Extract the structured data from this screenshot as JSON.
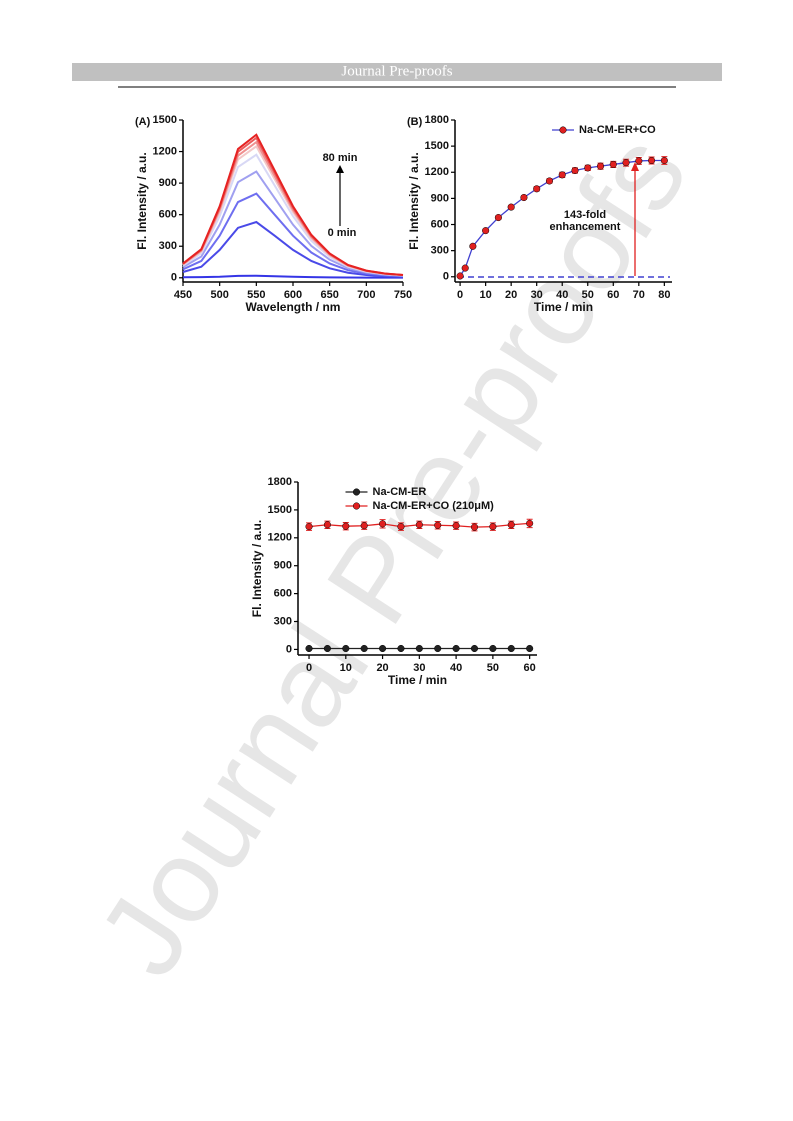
{
  "header": {
    "title": "Journal Pre-proofs"
  },
  "watermark": "Journal Pre-proofs",
  "chart_data": [
    {
      "type": "line",
      "panel_label": "(A)",
      "x_label": "Wavelength / nm",
      "y_label": "Fl. Intensity / a.u.",
      "x": [
        450,
        475,
        500,
        525,
        550,
        575,
        600,
        625,
        650,
        675,
        700,
        725,
        750
      ],
      "series": [
        {
          "color": "#3535e6",
          "values": [
            5,
            6,
            10,
            18,
            20,
            15,
            10,
            6,
            4,
            3,
            2,
            2,
            2
          ]
        },
        {
          "color": "#4a4ae8",
          "values": [
            55,
            105,
            265,
            475,
            530,
            400,
            265,
            160,
            90,
            48,
            27,
            16,
            11
          ]
        },
        {
          "color": "#6e6ef0",
          "values": [
            80,
            160,
            400,
            720,
            800,
            600,
            400,
            240,
            136,
            72,
            40,
            24,
            16
          ]
        },
        {
          "color": "#a0a0f0",
          "values": [
            101,
            202,
            505,
            909,
            1010,
            758,
            505,
            303,
            172,
            91,
            51,
            30,
            20
          ]
        },
        {
          "color": "#d8d8f5",
          "values": [
            117,
            234,
            585,
            1053,
            1170,
            878,
            585,
            351,
            199,
            105,
            59,
            35,
            23
          ]
        },
        {
          "color": "#f3c8c8",
          "values": [
            125,
            250,
            625,
            1125,
            1250,
            938,
            625,
            375,
            213,
            113,
            63,
            38,
            25
          ]
        },
        {
          "color": "#f09090",
          "values": [
            129,
            258,
            645,
            1161,
            1290,
            968,
            645,
            387,
            219,
            116,
            65,
            39,
            26
          ]
        },
        {
          "color": "#eb5a5a",
          "values": [
            133,
            266,
            665,
            1197,
            1330,
            998,
            665,
            399,
            226,
            120,
            67,
            40,
            27
          ]
        },
        {
          "color": "#e62222",
          "values": [
            136,
            272,
            680,
            1224,
            1360,
            1020,
            680,
            408,
            231,
            122,
            68,
            41,
            27
          ]
        }
      ],
      "annotations": [
        "80 min",
        "0 min"
      ],
      "xlim": [
        450,
        750
      ],
      "xticks": [
        450,
        500,
        550,
        600,
        650,
        700,
        750
      ],
      "ylim": [
        -40,
        1500
      ],
      "yticks": [
        0,
        300,
        600,
        900,
        1200,
        1500
      ],
      "markers": false
    },
    {
      "type": "line",
      "panel_label": "(B)",
      "x_label": "Time / min",
      "y_label": "Fl. Intensity / a.u.",
      "x": [
        0,
        2,
        5,
        10,
        15,
        20,
        25,
        30,
        35,
        40,
        45,
        50,
        55,
        60,
        65,
        70,
        75,
        80
      ],
      "series": [
        {
          "name": "Na-CM-ER+CO",
          "color": "#e02020",
          "line_color": "#4040d0",
          "values": [
            9,
            100,
            350,
            530,
            680,
            800,
            910,
            1010,
            1100,
            1170,
            1220,
            1250,
            1270,
            1290,
            1310,
            1330,
            1335,
            1335
          ],
          "errors": [
            5,
            10,
            15,
            15,
            20,
            20,
            20,
            25,
            25,
            30,
            30,
            30,
            35,
            35,
            40,
            40,
            40,
            45
          ]
        }
      ],
      "annotations": [
        "143-fold",
        "enhancement"
      ],
      "xlim": [
        -2,
        83
      ],
      "xticks": [
        0,
        10,
        20,
        30,
        40,
        50,
        60,
        70,
        80
      ],
      "ylim": [
        -60,
        1800
      ],
      "yticks": [
        0,
        300,
        600,
        900,
        1200,
        1500,
        1800
      ],
      "markers": true,
      "legend": "upper right"
    },
    {
      "type": "line",
      "x_label": "Time / min",
      "y_label": "Fl. Intensity / a.u.",
      "x": [
        0,
        5,
        10,
        15,
        20,
        25,
        30,
        35,
        40,
        45,
        50,
        55,
        60
      ],
      "series": [
        {
          "name": "Na-CM-ER",
          "color": "#222222",
          "values": [
            10,
            10,
            10,
            10,
            10,
            10,
            10,
            10,
            10,
            10,
            10,
            10,
            10
          ],
          "errors": [
            4,
            4,
            4,
            4,
            4,
            4,
            4,
            4,
            4,
            4,
            4,
            4,
            4
          ]
        },
        {
          "name": "Na-CM-ER+CO (210μM)",
          "color": "#e02020",
          "values": [
            1320,
            1340,
            1325,
            1330,
            1350,
            1320,
            1340,
            1335,
            1330,
            1315,
            1320,
            1340,
            1355
          ],
          "errors": [
            40,
            40,
            40,
            40,
            45,
            40,
            40,
            40,
            40,
            40,
            40,
            40,
            45
          ]
        }
      ],
      "xlim": [
        -3,
        62
      ],
      "xticks": [
        0,
        10,
        20,
        30,
        40,
        50,
        60
      ],
      "ylim": [
        -60,
        1800
      ],
      "yticks": [
        0,
        300,
        600,
        900,
        1200,
        1500,
        1800
      ],
      "markers": true,
      "legend": "upper center"
    }
  ]
}
